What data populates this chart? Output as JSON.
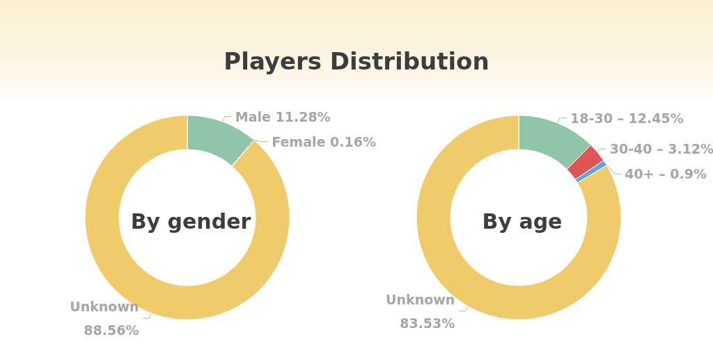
{
  "chart_data": [
    {
      "type": "donut",
      "title": "Players Distribution",
      "subtitle": "By gender",
      "categories": [
        "Male 11.28%",
        "Female 0.16%",
        "Unknown\n88.56%"
      ],
      "values": [
        11.28,
        0.16,
        88.56
      ],
      "colors": [
        "#8fc5a8",
        "#e05555",
        "#f0cb6a"
      ],
      "legend": false
    },
    {
      "type": "donut",
      "subtitle": "By age",
      "categories": [
        "18-30 – 12.45%",
        "30-40 – 3.12%",
        "40+ – 0.9%",
        "Unknown\n83.53%"
      ],
      "values": [
        12.45,
        3.12,
        0.9,
        83.53
      ],
      "colors": [
        "#8fc5a8",
        "#e05555",
        "#5aa8e0",
        "#f0cb6a"
      ],
      "legend": false
    }
  ]
}
